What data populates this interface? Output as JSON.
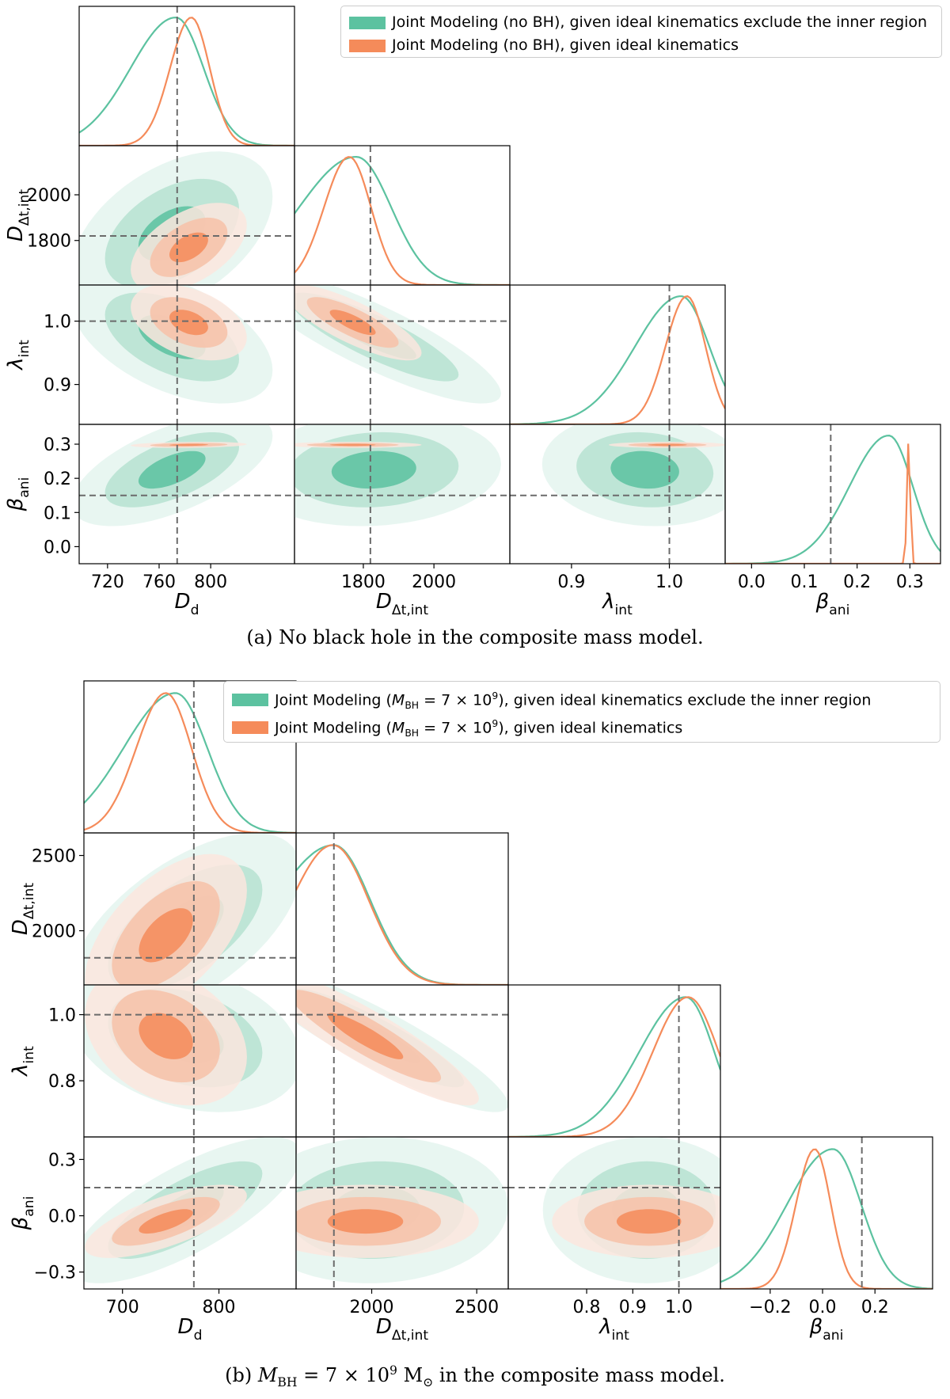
{
  "colors": {
    "green": "#5cc2a0",
    "orange": "#f58b5a",
    "green_light": "#e4f4ee",
    "green_mid": "#b6e2d1",
    "orange_light": "#fbe6de",
    "orange_mid": "#f7c1a8",
    "truth_line": "#6b6b6b"
  },
  "captions": {
    "a": "(a) No black hole in the composite mass model.",
    "b_prefix": "(b) ",
    "b_symbol": "M",
    "b_subscript": "BH",
    "b_equals": " = 7 × 10",
    "b_power": "9",
    "b_unit": " M",
    "b_unit_sub": "⊙",
    "b_suffix": " in the composite mass model."
  },
  "legends": {
    "a": {
      "green": "Joint Modeling (no BH), given ideal kinematics exclude the inner region",
      "orange": "Joint Modeling (no BH), given ideal kinematics"
    },
    "b": {
      "green_prefix": "Joint Modeling (",
      "green_suffix": "), given ideal kinematics exclude the inner region",
      "orange_prefix": "Joint Modeling (",
      "orange_suffix": "), given ideal kinematics",
      "mbh_symbol": "M",
      "mbh_subscript": "BH",
      "mbh_equals": " = 7 × 10",
      "mbh_power": "9"
    }
  },
  "chart_data": [
    {
      "type": "corner",
      "panel": "a",
      "parameters": [
        "D_d",
        "D_Δt,int",
        "λ_int",
        "β_ani"
      ],
      "axis_labels": {
        "D_d": {
          "main": "D",
          "sub": "d"
        },
        "D_Δt,int": {
          "main": "D",
          "sub": "Δt,int"
        },
        "λ_int": {
          "main": "λ",
          "sub": "int"
        },
        "β_ani": {
          "main": "β",
          "sub": "ani"
        }
      },
      "ranges": {
        "D_d": [
          698,
          865
        ],
        "D_Δt,int": [
          1605,
          2215
        ],
        "λ_int": [
          0.837,
          1.057
        ],
        "β_ani": [
          -0.05,
          0.358
        ]
      },
      "ticks": {
        "D_d": [
          720,
          760,
          800
        ],
        "D_Δt,int": [
          1800,
          2000
        ],
        "λ_int": [
          0.9,
          1.0
        ],
        "β_ani": [
          0.0,
          0.1,
          0.2,
          0.3
        ]
      },
      "tick_labels": {
        "D_d": [
          "720",
          "760",
          "800"
        ],
        "D_Δt,int": [
          "1800",
          "2000"
        ],
        "λ_int": [
          "0.9",
          "1.0"
        ],
        "β_ani": [
          "0.0",
          "0.1",
          "0.2",
          "0.3"
        ]
      },
      "y_ticks": {
        "D_Δt,int": [
          1800,
          2000
        ],
        "λ_int": [
          0.9,
          1.0
        ],
        "β_ani": [
          0.0,
          0.1,
          0.2,
          0.3
        ]
      },
      "y_tick_labels": {
        "D_Δt,int": [
          "1800",
          "2000"
        ],
        "λ_int": [
          "0.9",
          "1.0"
        ],
        "β_ani": [
          "0.0",
          "0.1",
          "0.2",
          "0.3"
        ]
      },
      "truths": {
        "D_d": 774,
        "D_Δt,int": 1820,
        "λ_int": 1.0,
        "β_ani": 0.15
      },
      "series": [
        {
          "name": "Joint Modeling (no BH), given ideal kinematics exclude the inner region",
          "color_key": "green",
          "mean": {
            "D_d": 770,
            "D_Δt,int": 1830,
            "λ_int": 0.975,
            "β_ani": 0.225
          },
          "sigma": {
            "D_d": 26,
            "D_Δt,int": 120,
            "λ_int": 0.035,
            "β_ani": 0.055
          },
          "corr": [
            [
              0,
              1,
              0.45
            ],
            [
              0,
              2,
              -0.5
            ],
            [
              0,
              3,
              0.6
            ],
            [
              1,
              2,
              -0.85
            ],
            [
              1,
              3,
              0.1
            ],
            [
              2,
              3,
              -0.1
            ]
          ],
          "peaks": {
            "D_d": 773,
            "D_Δt,int": 1780,
            "λ_int": 1.012,
            "β_ani": 0.26
          }
        },
        {
          "name": "Joint Modeling (no BH), given ideal kinematics",
          "color_key": "orange",
          "mean": {
            "D_d": 783,
            "D_Δt,int": 1770,
            "λ_int": 0.998,
            "β_ani": 0.298
          },
          "sigma": {
            "D_d": 15,
            "D_Δt,int": 65,
            "λ_int": 0.02,
            "β_ani": 0.003
          },
          "corr": [
            [
              0,
              1,
              0.5
            ],
            [
              0,
              2,
              -0.4
            ],
            [
              0,
              3,
              0.2
            ],
            [
              1,
              2,
              -0.8
            ],
            [
              1,
              3,
              0.0
            ],
            [
              2,
              3,
              0.0
            ]
          ],
          "peaks": {
            "D_d": 785,
            "D_Δt,int": 1760,
            "λ_int": 1.018,
            "β_ani": 0.298
          }
        }
      ]
    },
    {
      "type": "corner",
      "panel": "b",
      "parameters": [
        "D_d",
        "D_Δt,int",
        "λ_int",
        "β_ani"
      ],
      "axis_labels": {
        "D_d": {
          "main": "D",
          "sub": "d"
        },
        "D_Δt,int": {
          "main": "D",
          "sub": "Δt,int"
        },
        "λ_int": {
          "main": "λ",
          "sub": "int"
        },
        "β_ani": {
          "main": "β",
          "sub": "ani"
        }
      },
      "ranges": {
        "D_d": [
          660,
          880
        ],
        "D_Δt,int": [
          1640,
          2650
        ],
        "λ_int": [
          0.63,
          1.09
        ],
        "β_ani": [
          -0.39,
          0.42
        ]
      },
      "ticks": {
        "D_d": [
          700,
          800
        ],
        "D_Δt,int": [
          2000,
          2500
        ],
        "λ_int": [
          0.8,
          0.9,
          1.0
        ],
        "β_ani": [
          -0.2,
          0.0,
          0.2
        ]
      },
      "tick_labels": {
        "D_d": [
          "700",
          "800"
        ],
        "D_Δt,int": [
          "2000",
          "2500"
        ],
        "λ_int": [
          "0.8",
          "0.9",
          "1.0"
        ],
        "β_ani": [
          "−0.2",
          "0.0",
          "0.2"
        ]
      },
      "y_ticks": {
        "D_Δt,int": [
          2000,
          2500
        ],
        "λ_int": [
          0.8,
          1.0
        ],
        "β_ani": [
          -0.3,
          0.0,
          0.3
        ]
      },
      "y_tick_labels": {
        "D_Δt,int": [
          "2000",
          "2500"
        ],
        "λ_int": [
          "0.8",
          "1.0"
        ],
        "β_ani": [
          "−0.3",
          "0.0",
          "0.3"
        ]
      },
      "truths": {
        "D_d": 774,
        "D_Δt,int": 1820,
        "λ_int": 1.0,
        "β_ani": 0.15
      },
      "series": [
        {
          "name": "Joint Modeling (M_BH = 7 × 10^9), given ideal kinematics exclude the inner region",
          "color_key": "green",
          "mean": {
            "D_d": 765,
            "D_Δt,int": 2020,
            "λ_int": 0.93,
            "β_ani": 0.03
          },
          "sigma": {
            "D_d": 40,
            "D_Δt,int": 210,
            "λ_int": 0.075,
            "β_ani": 0.13
          },
          "corr": [
            [
              0,
              1,
              0.6
            ],
            [
              0,
              2,
              -0.3
            ],
            [
              0,
              3,
              0.75
            ],
            [
              1,
              2,
              -0.9
            ],
            [
              1,
              3,
              0.05
            ],
            [
              2,
              3,
              0.0
            ]
          ],
          "peaks": {
            "D_d": 755,
            "D_Δt,int": 1820,
            "λ_int": 1.015,
            "β_ani": 0.04
          }
        },
        {
          "name": "Joint Modeling (M_BH = 7 × 10^9), given ideal kinematics",
          "color_key": "orange",
          "mean": {
            "D_d": 745,
            "D_Δt,int": 1970,
            "λ_int": 0.935,
            "β_ani": -0.03
          },
          "sigma": {
            "D_d": 28,
            "D_Δt,int": 180,
            "λ_int": 0.07,
            "β_ani": 0.065
          },
          "corr": [
            [
              0,
              1,
              0.55
            ],
            [
              0,
              2,
              -0.3
            ],
            [
              0,
              3,
              0.7
            ],
            [
              1,
              2,
              -0.9
            ],
            [
              1,
              3,
              0.0
            ],
            [
              2,
              3,
              0.0
            ]
          ],
          "peaks": {
            "D_d": 745,
            "D_Δt,int": 1815,
            "λ_int": 1.02,
            "β_ani": -0.03
          }
        }
      ]
    }
  ]
}
